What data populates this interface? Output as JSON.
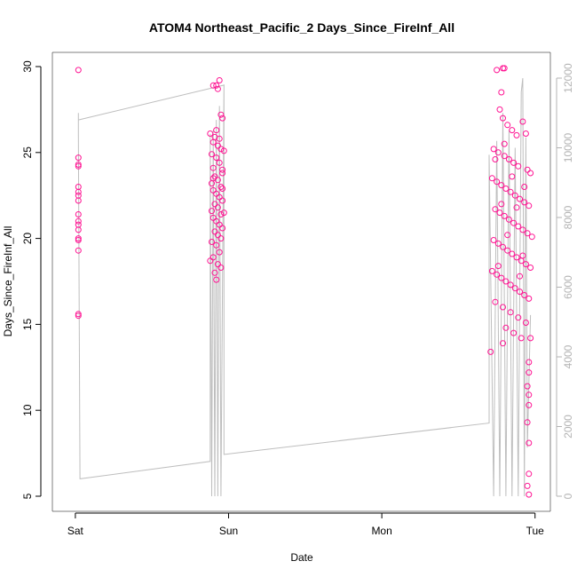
{
  "chart_data": {
    "type": "scatter",
    "title": "ATOM4 Northeast_Pacific_2 Days_Since_FireInf_All",
    "xlabel": "Date",
    "ylabel": "Days_Since_FireInf_All",
    "x_ticks": [
      "Sat",
      "Sun",
      "Mon",
      "Tue"
    ],
    "x_tick_values": [
      0,
      1,
      2,
      3
    ],
    "xlim": [
      -0.15,
      3.1
    ],
    "y_ticks": [
      "5",
      "10",
      "15",
      "20",
      "25",
      "30"
    ],
    "y_tick_values": [
      5,
      10,
      15,
      20,
      25,
      30
    ],
    "ylim": [
      5,
      30
    ],
    "y2_ticks": [
      "0",
      "2000",
      "4000",
      "6000",
      "8000",
      "10000",
      "12000"
    ],
    "y2_tick_values": [
      0,
      2000,
      4000,
      6000,
      8000,
      10000,
      12000
    ],
    "y2lim": [
      0,
      12000
    ],
    "grid": false,
    "legend": "none",
    "point_color": "#ff1493",
    "line_color": "#bebebe",
    "series": [
      {
        "type": "scatter",
        "points": [
          [
            0.02,
            29.8
          ],
          [
            0.02,
            24.7
          ],
          [
            0.02,
            24.3
          ],
          [
            0.02,
            24.2
          ],
          [
            0.02,
            23.0
          ],
          [
            0.02,
            22.7
          ],
          [
            0.02,
            22.5
          ],
          [
            0.02,
            22.2
          ],
          [
            0.02,
            21.4
          ],
          [
            0.02,
            21.0
          ],
          [
            0.02,
            20.8
          ],
          [
            0.02,
            20.5
          ],
          [
            0.02,
            20.0
          ],
          [
            0.02,
            19.9
          ],
          [
            0.02,
            19.3
          ],
          [
            0.02,
            15.6
          ],
          [
            0.02,
            15.5
          ],
          [
            0.9,
            28.9
          ],
          [
            0.92,
            28.9
          ],
          [
            0.94,
            29.2
          ],
          [
            0.93,
            28.7
          ],
          [
            0.95,
            27.2
          ],
          [
            0.96,
            27.0
          ],
          [
            0.88,
            26.1
          ],
          [
            0.91,
            25.9
          ],
          [
            0.9,
            25.6
          ],
          [
            0.93,
            25.4
          ],
          [
            0.95,
            25.2
          ],
          [
            0.97,
            25.1
          ],
          [
            0.89,
            24.9
          ],
          [
            0.92,
            24.7
          ],
          [
            0.94,
            24.4
          ],
          [
            0.9,
            24.1
          ],
          [
            0.96,
            23.8
          ],
          [
            0.91,
            23.6
          ],
          [
            0.93,
            23.4
          ],
          [
            0.89,
            23.2
          ],
          [
            0.95,
            23.0
          ],
          [
            0.9,
            22.8
          ],
          [
            0.92,
            22.6
          ],
          [
            0.94,
            22.4
          ],
          [
            0.96,
            22.2
          ],
          [
            0.91,
            22.0
          ],
          [
            0.93,
            21.8
          ],
          [
            0.89,
            21.6
          ],
          [
            0.95,
            21.4
          ],
          [
            0.9,
            21.2
          ],
          [
            0.92,
            21.0
          ],
          [
            0.94,
            20.8
          ],
          [
            0.96,
            20.6
          ],
          [
            0.91,
            20.4
          ],
          [
            0.93,
            20.2
          ],
          [
            0.95,
            20.0
          ],
          [
            0.89,
            19.8
          ],
          [
            0.92,
            19.6
          ],
          [
            0.94,
            19.2
          ],
          [
            0.9,
            18.9
          ],
          [
            0.93,
            18.5
          ],
          [
            0.95,
            18.3
          ],
          [
            0.91,
            18.0
          ],
          [
            0.92,
            17.6
          ],
          [
            0.88,
            18.7
          ],
          [
            0.96,
            24.0
          ],
          [
            0.97,
            21.5
          ],
          [
            0.9,
            23.5
          ],
          [
            0.94,
            25.8
          ],
          [
            0.92,
            26.3
          ],
          [
            0.96,
            22.9
          ],
          [
            2.75,
            29.8
          ],
          [
            2.79,
            29.9
          ],
          [
            2.8,
            29.9
          ],
          [
            2.78,
            28.5
          ],
          [
            2.77,
            27.5
          ],
          [
            2.79,
            27.0
          ],
          [
            2.82,
            26.6
          ],
          [
            2.85,
            26.3
          ],
          [
            2.88,
            26.0
          ],
          [
            2.92,
            26.8
          ],
          [
            2.94,
            26.1
          ],
          [
            2.73,
            25.2
          ],
          [
            2.76,
            25.0
          ],
          [
            2.8,
            24.8
          ],
          [
            2.83,
            24.6
          ],
          [
            2.86,
            24.4
          ],
          [
            2.89,
            24.2
          ],
          [
            2.95,
            24.0
          ],
          [
            2.97,
            23.8
          ],
          [
            2.72,
            23.5
          ],
          [
            2.75,
            23.3
          ],
          [
            2.78,
            23.1
          ],
          [
            2.81,
            22.9
          ],
          [
            2.84,
            22.7
          ],
          [
            2.87,
            22.5
          ],
          [
            2.9,
            22.3
          ],
          [
            2.93,
            22.1
          ],
          [
            2.96,
            21.9
          ],
          [
            2.74,
            21.7
          ],
          [
            2.77,
            21.5
          ],
          [
            2.8,
            21.3
          ],
          [
            2.83,
            21.1
          ],
          [
            2.86,
            20.9
          ],
          [
            2.89,
            20.7
          ],
          [
            2.92,
            20.5
          ],
          [
            2.95,
            20.3
          ],
          [
            2.98,
            20.1
          ],
          [
            2.73,
            19.9
          ],
          [
            2.76,
            19.7
          ],
          [
            2.79,
            19.5
          ],
          [
            2.82,
            19.3
          ],
          [
            2.85,
            19.1
          ],
          [
            2.88,
            18.9
          ],
          [
            2.91,
            18.7
          ],
          [
            2.94,
            18.5
          ],
          [
            2.97,
            18.3
          ],
          [
            2.72,
            18.1
          ],
          [
            2.75,
            17.9
          ],
          [
            2.78,
            17.7
          ],
          [
            2.81,
            17.5
          ],
          [
            2.84,
            17.3
          ],
          [
            2.87,
            17.1
          ],
          [
            2.9,
            16.9
          ],
          [
            2.93,
            16.7
          ],
          [
            2.96,
            16.5
          ],
          [
            2.74,
            16.3
          ],
          [
            2.79,
            16.0
          ],
          [
            2.84,
            15.7
          ],
          [
            2.89,
            15.4
          ],
          [
            2.94,
            15.1
          ],
          [
            2.81,
            14.8
          ],
          [
            2.86,
            14.5
          ],
          [
            2.91,
            14.2
          ],
          [
            2.71,
            13.4
          ],
          [
            2.79,
            13.9
          ],
          [
            2.97,
            14.2
          ],
          [
            2.96,
            12.8
          ],
          [
            2.96,
            12.2
          ],
          [
            2.95,
            11.4
          ],
          [
            2.96,
            10.9
          ],
          [
            2.96,
            10.3
          ],
          [
            2.95,
            9.3
          ],
          [
            2.96,
            8.1
          ],
          [
            2.96,
            6.3
          ],
          [
            2.95,
            5.6
          ],
          [
            2.96,
            5.1
          ],
          [
            2.74,
            24.6
          ],
          [
            2.78,
            22.0
          ],
          [
            2.82,
            20.2
          ],
          [
            2.88,
            21.8
          ],
          [
            2.92,
            19.0
          ],
          [
            2.76,
            18.4
          ],
          [
            2.85,
            23.6
          ],
          [
            2.9,
            17.8
          ],
          [
            2.8,
            25.5
          ],
          [
            2.93,
            23.0
          ]
        ]
      },
      {
        "type": "line",
        "axis": "right",
        "points": [
          [
            0.02,
            11000
          ],
          [
            0.02,
            10400
          ],
          [
            0.03,
            500
          ],
          [
            0.88,
            1000
          ],
          [
            0.88,
            10400
          ],
          [
            0.89,
            0
          ],
          [
            0.9,
            10500
          ],
          [
            0.91,
            0
          ],
          [
            0.92,
            10800
          ],
          [
            0.93,
            0
          ],
          [
            0.94,
            11200
          ],
          [
            0.95,
            0
          ],
          [
            0.97,
            11800
          ],
          [
            0.02,
            10800
          ],
          [
            0.97,
            11800
          ],
          [
            0.97,
            1200
          ],
          [
            2.7,
            2100
          ],
          [
            2.7,
            9800
          ],
          [
            2.73,
            0
          ],
          [
            2.75,
            10200
          ],
          [
            2.77,
            0
          ],
          [
            2.79,
            11000
          ],
          [
            2.81,
            0
          ],
          [
            2.83,
            10500
          ],
          [
            2.85,
            0
          ],
          [
            2.87,
            10000
          ],
          [
            2.89,
            0
          ],
          [
            2.91,
            11600
          ],
          [
            2.92,
            12000
          ],
          [
            2.93,
            0
          ],
          [
            2.94,
            10300
          ],
          [
            2.95,
            1400
          ],
          [
            2.97,
            5200
          ]
        ]
      }
    ]
  }
}
